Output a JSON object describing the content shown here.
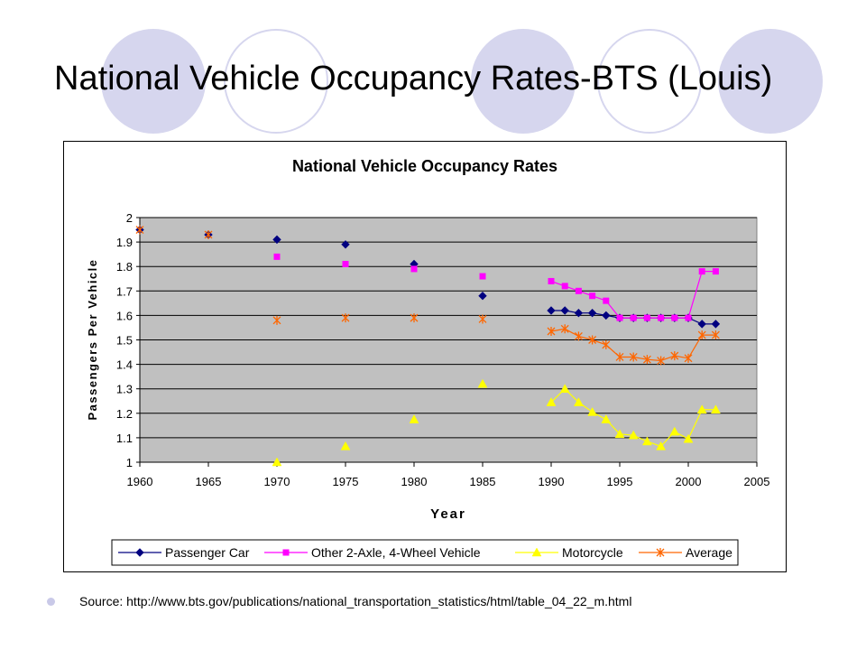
{
  "slide": {
    "title": "National Vehicle Occupancy Rates-BTS (Louis)",
    "source": "Source: http://www.bts.gov/publications/national_transportation_statistics/html/table_04_22_m.html"
  },
  "colors": {
    "decor_circle": "#d6d6ee",
    "plot_background": "#c0c0c0",
    "passenger_car": "#000080",
    "other_2axle": "#ff00ff",
    "motorcycle": "#ffff00",
    "average": "#ff6600"
  },
  "chart_data": {
    "type": "line",
    "title": "National Vehicle Occupancy Rates",
    "xlabel": "Year",
    "ylabel": "Passengers Per Vehicle",
    "xlim": [
      1960,
      2005
    ],
    "ylim": [
      1,
      2
    ],
    "xticks": [
      "1960",
      "1965",
      "1970",
      "1975",
      "1980",
      "1985",
      "1990",
      "1995",
      "2000",
      "2005"
    ],
    "yticks": [
      "1",
      "1.1",
      "1.2",
      "1.3",
      "1.4",
      "1.5",
      "1.6",
      "1.7",
      "1.8",
      "1.9",
      "2"
    ],
    "grid": true,
    "legend_position": "bottom",
    "series": [
      {
        "name": "Passenger Car",
        "marker": "diamond",
        "points": [
          [
            1960,
            1.95
          ],
          [
            1965,
            1.93
          ],
          [
            1970,
            1.91
          ],
          [
            1975,
            1.89
          ],
          [
            1980,
            1.81
          ],
          [
            1985,
            1.68
          ],
          [
            1990,
            1.62
          ],
          [
            1991,
            1.62
          ],
          [
            1992,
            1.61
          ],
          [
            1993,
            1.61
          ],
          [
            1994,
            1.6
          ],
          [
            1995,
            1.59
          ],
          [
            1996,
            1.59
          ],
          [
            1997,
            1.59
          ],
          [
            1998,
            1.59
          ],
          [
            1999,
            1.59
          ],
          [
            2000,
            1.59
          ],
          [
            2001,
            1.565
          ],
          [
            2002,
            1.565
          ]
        ],
        "line_from": 1990
      },
      {
        "name": "Other 2-Axle, 4-Wheel Vehicle",
        "marker": "square",
        "points": [
          [
            1970,
            1.84
          ],
          [
            1975,
            1.81
          ],
          [
            1980,
            1.79
          ],
          [
            1985,
            1.76
          ],
          [
            1990,
            1.74
          ],
          [
            1991,
            1.72
          ],
          [
            1992,
            1.7
          ],
          [
            1993,
            1.68
          ],
          [
            1994,
            1.66
          ],
          [
            1995,
            1.59
          ],
          [
            1996,
            1.59
          ],
          [
            1997,
            1.59
          ],
          [
            1998,
            1.59
          ],
          [
            1999,
            1.59
          ],
          [
            2000,
            1.59
          ],
          [
            2001,
            1.78
          ],
          [
            2002,
            1.78
          ]
        ],
        "line_from": 1990
      },
      {
        "name": "Motorcycle",
        "marker": "triangle",
        "points": [
          [
            1970,
            1.0
          ],
          [
            1975,
            1.065
          ],
          [
            1980,
            1.175
          ],
          [
            1985,
            1.32
          ],
          [
            1990,
            1.245
          ],
          [
            1991,
            1.3
          ],
          [
            1992,
            1.245
          ],
          [
            1993,
            1.205
          ],
          [
            1994,
            1.175
          ],
          [
            1995,
            1.115
          ],
          [
            1996,
            1.11
          ],
          [
            1997,
            1.085
          ],
          [
            1998,
            1.065
          ],
          [
            1999,
            1.125
          ],
          [
            2000,
            1.095
          ],
          [
            2001,
            1.215
          ],
          [
            2002,
            1.215
          ]
        ],
        "line_from": 1990
      },
      {
        "name": "Average",
        "marker": "star",
        "points": [
          [
            1960,
            1.95
          ],
          [
            1965,
            1.93
          ],
          [
            1970,
            1.58
          ],
          [
            1975,
            1.59
          ],
          [
            1980,
            1.59
          ],
          [
            1985,
            1.585
          ],
          [
            1990,
            1.535
          ],
          [
            1991,
            1.545
          ],
          [
            1992,
            1.515
          ],
          [
            1993,
            1.5
          ],
          [
            1994,
            1.48
          ],
          [
            1995,
            1.43
          ],
          [
            1996,
            1.43
          ],
          [
            1997,
            1.42
          ],
          [
            1998,
            1.415
          ],
          [
            1999,
            1.435
          ],
          [
            2000,
            1.425
          ],
          [
            2001,
            1.52
          ],
          [
            2002,
            1.52
          ]
        ],
        "line_from": 1990
      }
    ]
  }
}
